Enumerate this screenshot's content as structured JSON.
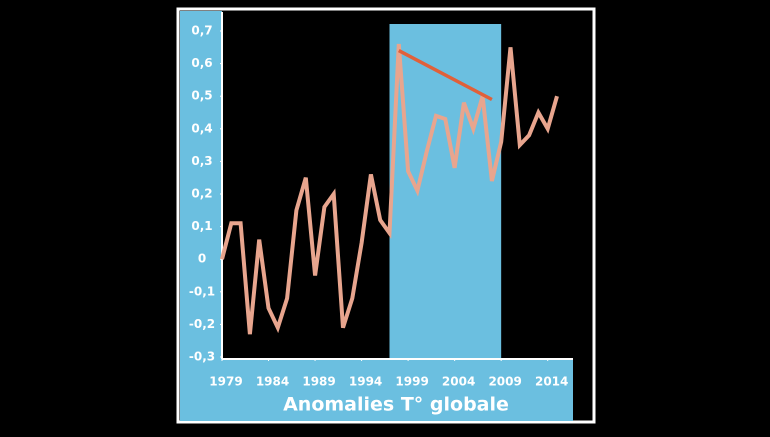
{
  "chart_data": {
    "type": "line",
    "title": "Anomalies T° globale",
    "x": [
      1979,
      1980,
      1981,
      1982,
      1983,
      1984,
      1985,
      1986,
      1987,
      1988,
      1989,
      1990,
      1991,
      1992,
      1993,
      1994,
      1995,
      1996,
      1997,
      1998,
      1999,
      2000,
      2001,
      2002,
      2003,
      2004,
      2005,
      2006,
      2007,
      2008,
      2009,
      2010,
      2011,
      2012,
      2013,
      2014,
      2015
    ],
    "series": [
      {
        "color": "#e8a58e",
        "values": [
          0.0,
          0.11,
          0.11,
          -0.23,
          0.06,
          -0.15,
          -0.21,
          -0.12,
          0.15,
          0.25,
          -0.05,
          0.16,
          0.2,
          -0.21,
          -0.12,
          0.05,
          0.26,
          0.12,
          0.08,
          0.66,
          0.27,
          0.21,
          0.33,
          0.44,
          0.43,
          0.28,
          0.48,
          0.4,
          0.5,
          0.24,
          0.36,
          0.65,
          0.35,
          0.38,
          0.45,
          0.4,
          0.5
        ]
      },
      {
        "color": "#e0603a",
        "x": [
          1998,
          2008
        ],
        "values": [
          0.64,
          0.49
        ]
      }
    ],
    "highlight": [
      1997,
      2009
    ],
    "highlight_color": "#6bbfe0",
    "xlim": [
      1979,
      2015
    ],
    "xticks": [
      1979,
      1984,
      1989,
      1994,
      1999,
      2004,
      2009,
      2014
    ],
    "ylim": [
      -0.3,
      0.7
    ],
    "yticks": [
      {
        "value": -0.3,
        "label": "-0,3"
      },
      {
        "value": -0.2,
        "label": "-0,2"
      },
      {
        "value": -0.1,
        "label": "-0,1"
      },
      0,
      {
        "value": 0.1,
        "label": "0,1"
      },
      {
        "value": 0.2,
        "label": "0,2"
      },
      {
        "value": 0.3,
        "label": "0,3"
      },
      {
        "value": 0.4,
        "label": "0,4"
      },
      {
        "value": 0.5,
        "label": "0,5"
      },
      {
        "value": 0.6,
        "label": "0,6"
      },
      {
        "value": 0.7,
        "label": "0,7"
      }
    ]
  }
}
